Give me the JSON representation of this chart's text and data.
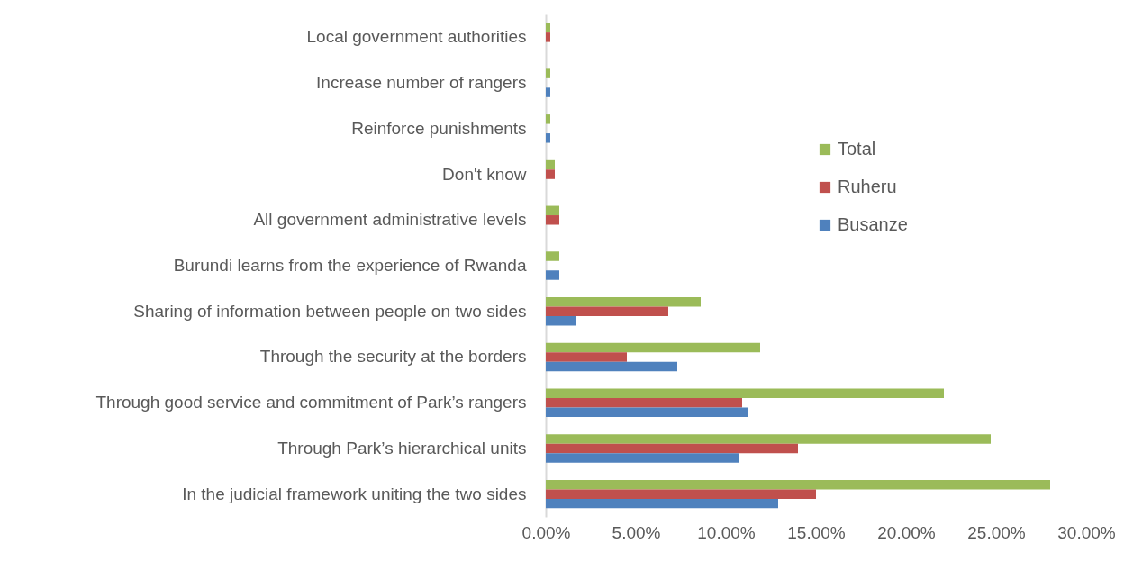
{
  "chart_data": {
    "type": "bar",
    "orientation": "horizontal",
    "categories": [
      "Local government authorities",
      "Increase number of rangers",
      "Reinforce punishments",
      "Don't know",
      "All government administrative levels",
      "Burundi learns from the experience of Rwanda",
      "Sharing of information between people on two sides",
      "Through the security at the borders",
      "Through good service and commitment of Park’s rangers",
      "Through Park’s hierarchical units",
      "In the judicial framework uniting the two sides"
    ],
    "series": [
      {
        "name": "Total",
        "color": "#9bbb59",
        "values": [
          0.25,
          0.25,
          0.25,
          0.5,
          0.75,
          0.75,
          8.6,
          11.9,
          22.1,
          24.7,
          28.0
        ]
      },
      {
        "name": "Ruheru",
        "color": "#c0504d",
        "values": [
          0.25,
          null,
          null,
          0.5,
          0.75,
          null,
          6.8,
          4.5,
          10.9,
          14.0,
          15.0
        ]
      },
      {
        "name": "Busanze",
        "color": "#4f81bd",
        "values": [
          null,
          0.25,
          0.25,
          null,
          null,
          0.75,
          1.7,
          7.3,
          11.2,
          10.7,
          12.9
        ]
      }
    ],
    "xlim": [
      0,
      30
    ],
    "xticks": [
      {
        "value": 0,
        "label": "0.00%"
      },
      {
        "value": 5,
        "label": "5.00%"
      },
      {
        "value": 10,
        "label": "10.00%"
      },
      {
        "value": 15,
        "label": "15.00%"
      },
      {
        "value": 20,
        "label": "20.00%"
      },
      {
        "value": 25,
        "label": "25.00%"
      },
      {
        "value": 30,
        "label": "30.00%"
      }
    ],
    "legend": "right",
    "grid": false
  }
}
